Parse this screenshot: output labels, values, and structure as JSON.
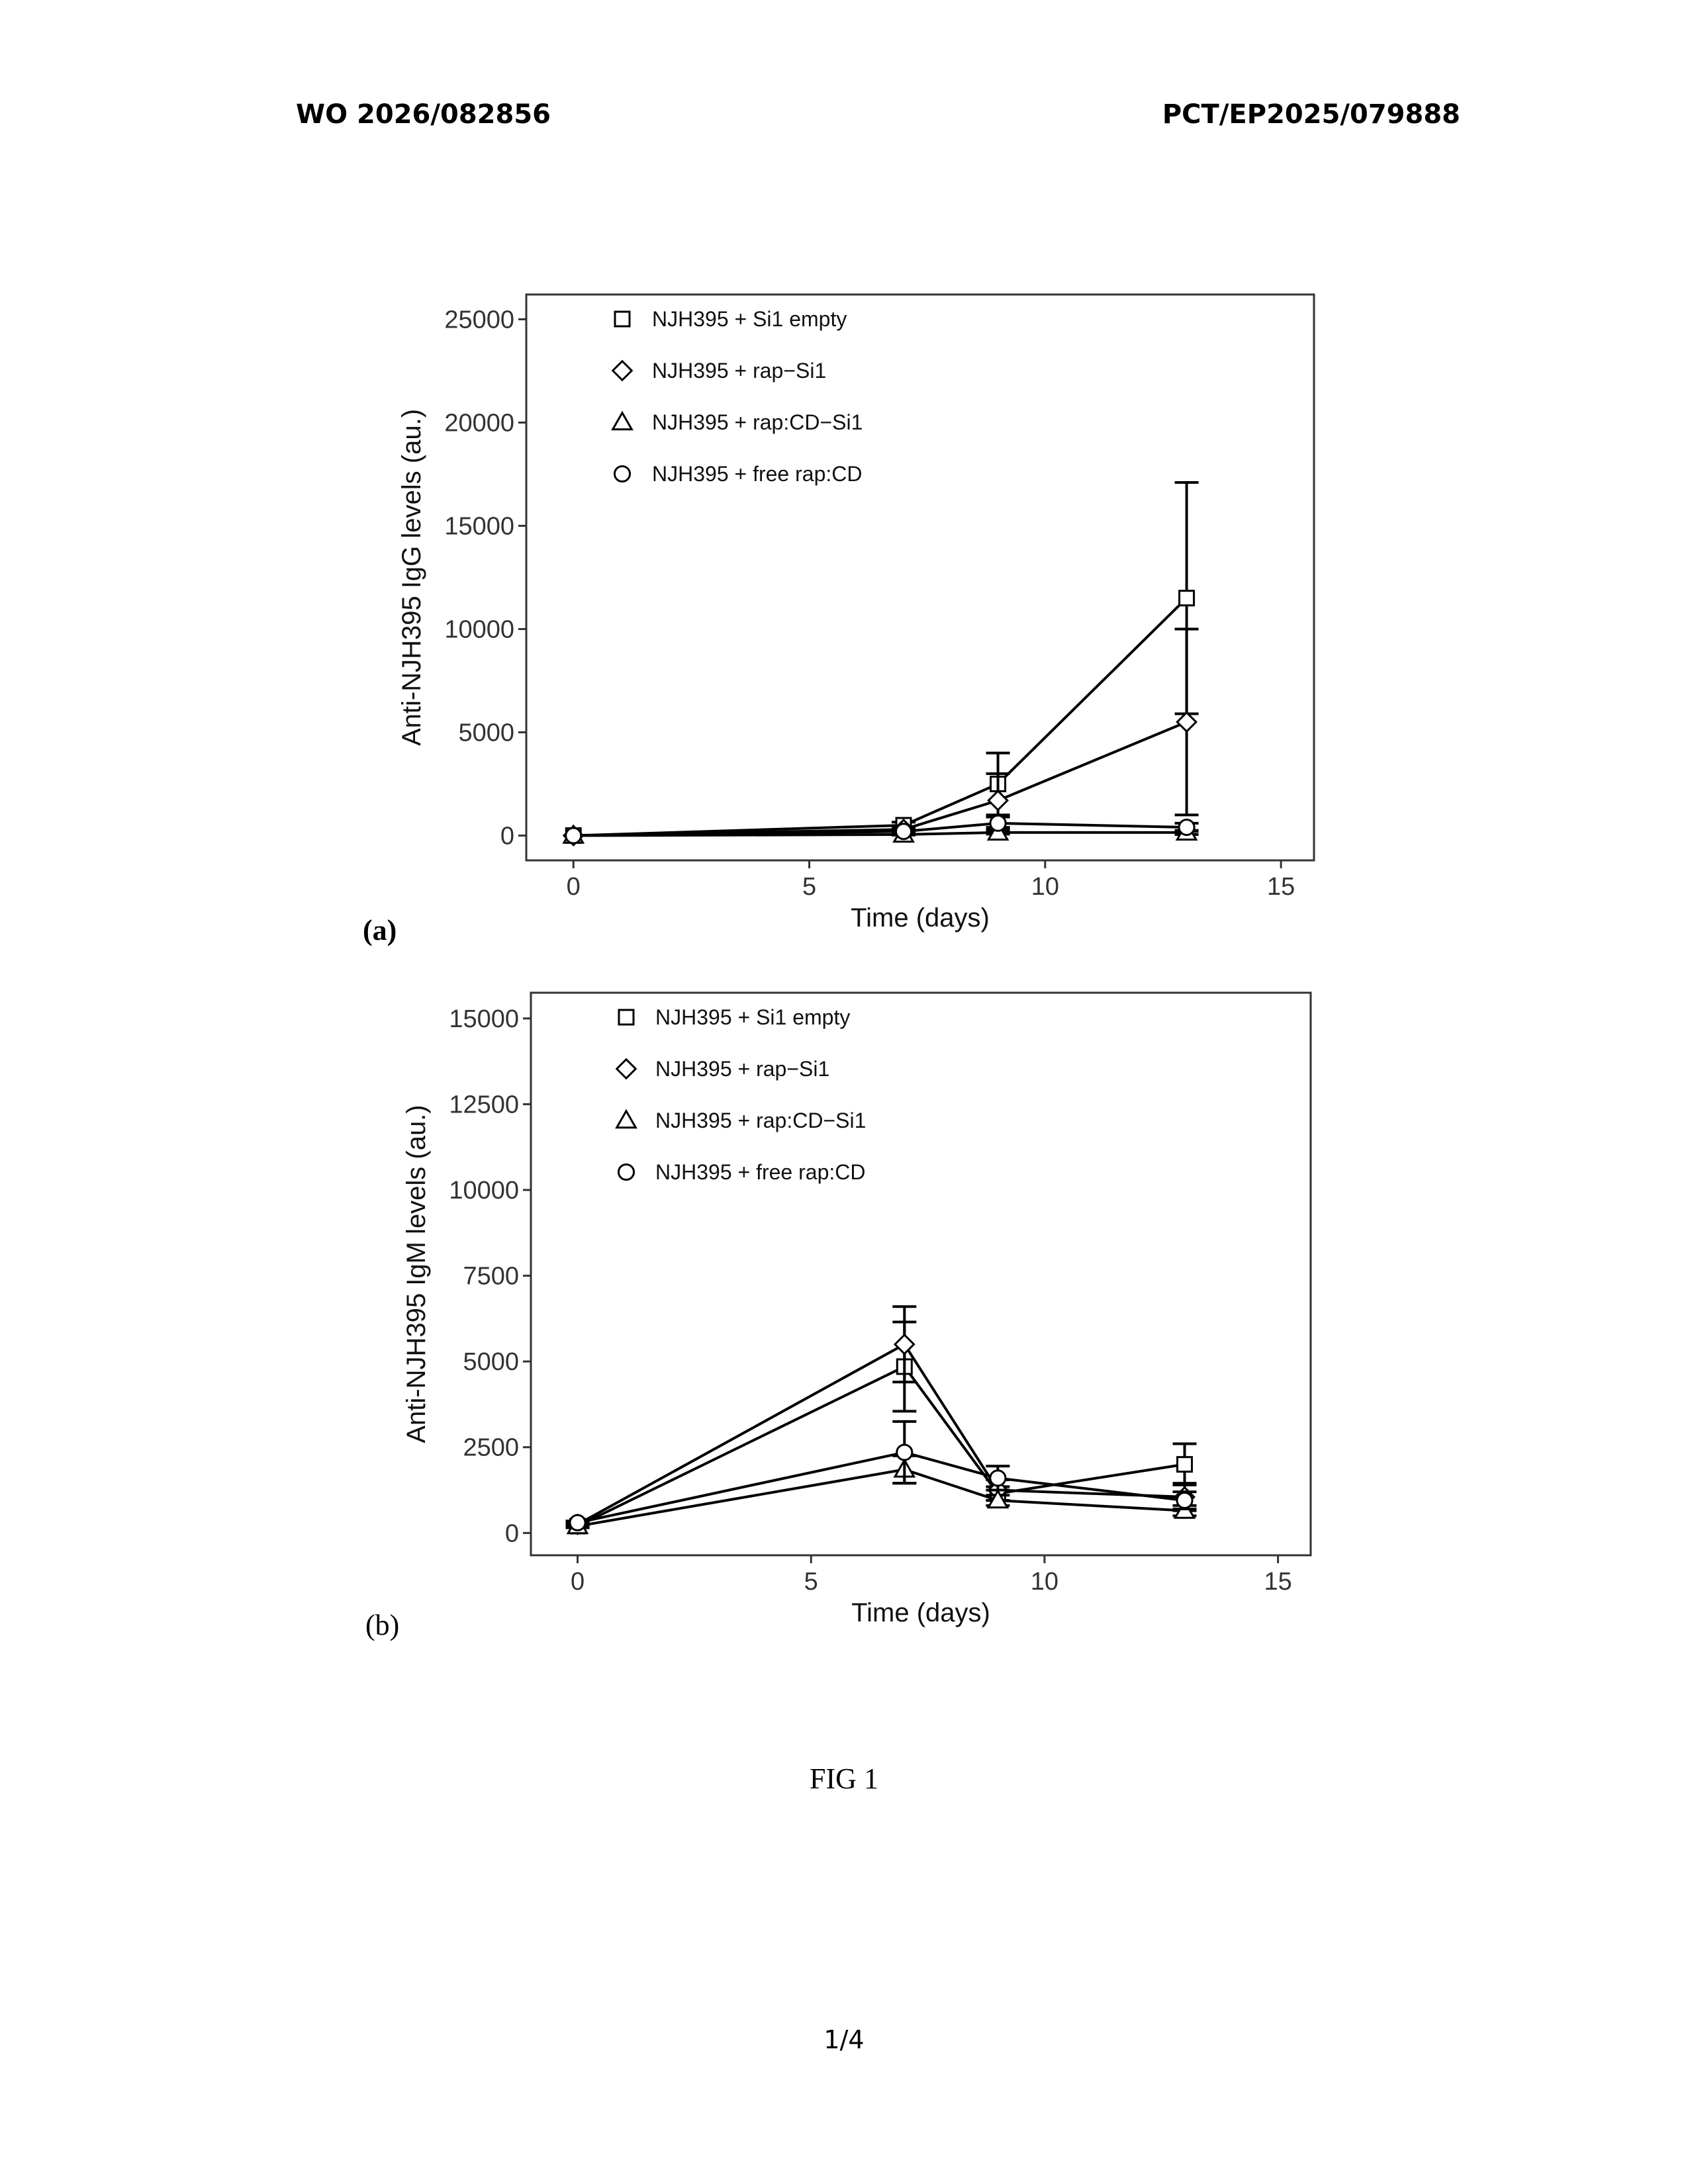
{
  "header": {
    "publication_number": "WO 2026/082856",
    "application_number": "PCT/EP2025/079888"
  },
  "figure_caption": "FIG 1",
  "page_number": "1/4",
  "colors": {
    "line": "#000000",
    "marker_fill": "#ffffff",
    "frame": "#333333"
  },
  "panel_labels": [
    "(a)",
    "(b)"
  ],
  "chart_data": [
    {
      "type": "line",
      "panel": "(a)",
      "title": "",
      "xlabel": "Time (days)",
      "ylabel": "Anti-NJH395 IgG levels (au.)",
      "xlim": [
        -1,
        15.7
      ],
      "ylim": [
        -1200,
        26200
      ],
      "xticks": [
        0,
        5,
        10,
        15
      ],
      "yticks": [
        0,
        5000,
        10000,
        15000,
        20000,
        25000
      ],
      "grid": false,
      "legend_position": "top-left",
      "x": [
        0,
        7,
        9,
        13
      ],
      "series": [
        {
          "name": "NJH395 + Si1 empty",
          "marker": "square",
          "values": [
            0,
            500,
            2500,
            11500
          ],
          "error": [
            0,
            150,
            1500,
            5600
          ]
        },
        {
          "name": "NJH395 + rap−Si1",
          "marker": "diamond",
          "values": [
            0,
            300,
            1700,
            5500
          ],
          "error": [
            0,
            100,
            1300,
            4500
          ]
        },
        {
          "name": "NJH395 + rap:CD−Si1",
          "marker": "triangle",
          "values": [
            0,
            50,
            150,
            150
          ],
          "error": [
            0,
            30,
            80,
            100
          ]
        },
        {
          "name": "NJH395 + free rap:CD",
          "marker": "circle",
          "values": [
            0,
            200,
            600,
            400
          ],
          "error": [
            0,
            100,
            300,
            200
          ]
        }
      ]
    },
    {
      "type": "line",
      "panel": "(b)",
      "title": "",
      "xlabel": "Time (days)",
      "ylabel": "Anti-NJH395 IgM levels (au.)",
      "xlim": [
        -1,
        15.7
      ],
      "ylim": [
        -650,
        15750
      ],
      "xticks": [
        0,
        5,
        10,
        15
      ],
      "yticks": [
        0,
        2500,
        5000,
        7500,
        10000,
        12500,
        15000
      ],
      "grid": false,
      "legend_position": "top-left",
      "x": [
        0,
        7,
        9,
        13
      ],
      "series": [
        {
          "name": "NJH395 + Si1 empty",
          "marker": "square",
          "values": [
            200,
            4850,
            1150,
            2000
          ],
          "error": [
            50,
            1300,
            200,
            600
          ]
        },
        {
          "name": "NJH395 + rap−Si1",
          "marker": "diamond",
          "values": [
            250,
            5500,
            1250,
            1050
          ],
          "error": [
            50,
            1100,
            300,
            400
          ]
        },
        {
          "name": "NJH395 + rap:CD−Si1",
          "marker": "triangle",
          "values": [
            200,
            1850,
            950,
            650
          ],
          "error": [
            50,
            400,
            150,
            150
          ]
        },
        {
          "name": "NJH395 + free rap:CD",
          "marker": "circle",
          "values": [
            300,
            2350,
            1600,
            950
          ],
          "error": [
            50,
            900,
            350,
            250
          ]
        }
      ]
    }
  ]
}
